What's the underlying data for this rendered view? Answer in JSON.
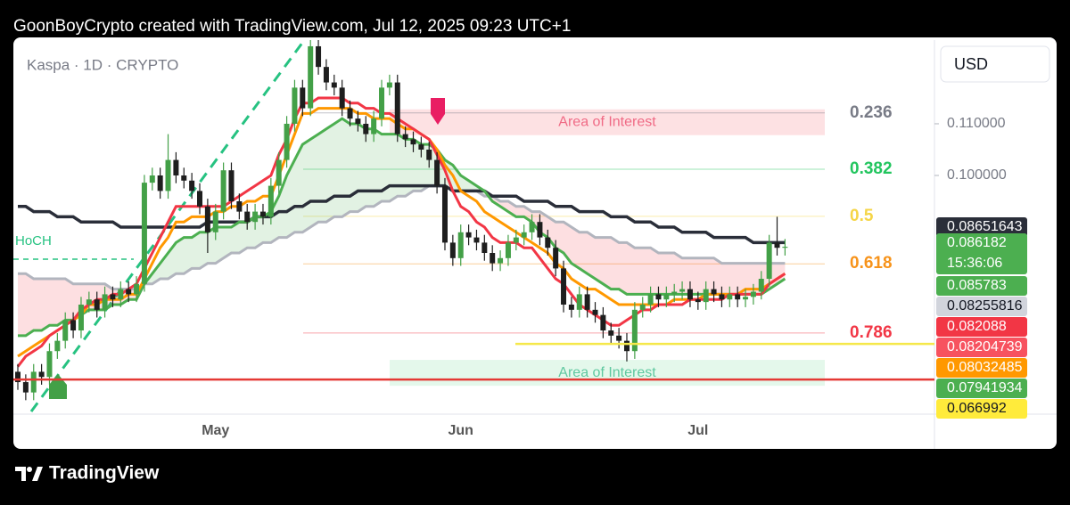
{
  "header": {
    "text": "GoonBoyCrypto created with TradingView.com, Jul 12, 2025 09:23 UTC+1"
  },
  "footer": {
    "brand": "TradingView"
  },
  "chart_data": {
    "type": "candlestick",
    "title": "Kaspa · 1D · CRYPTO",
    "currency": "USD",
    "categories": [
      null,
      null,
      null,
      null,
      null,
      null,
      null,
      null,
      null,
      null,
      null,
      null,
      null,
      null,
      null,
      null,
      null,
      null,
      null,
      null,
      null,
      null,
      null,
      null,
      null,
      "May",
      null,
      null,
      null,
      null,
      null,
      null,
      null,
      null,
      null,
      null,
      null,
      null,
      null,
      null,
      null,
      null,
      null,
      null,
      null,
      null,
      null,
      null,
      null,
      null,
      null,
      null,
      null,
      null,
      null,
      null,
      "Jun",
      null,
      null,
      null,
      null,
      null,
      null,
      null,
      null,
      null,
      null,
      null,
      null,
      null,
      null,
      null,
      null,
      null,
      null,
      null,
      null,
      null,
      null,
      null,
      null,
      null,
      null,
      null,
      null,
      null,
      "Jul",
      null,
      null,
      null,
      null,
      null,
      null,
      null,
      null,
      null,
      null,
      null
    ],
    "open": [
      0.062,
      0.06,
      0.058,
      0.062,
      0.061,
      0.066,
      0.068,
      0.072,
      0.07,
      0.075,
      0.076,
      0.074,
      0.077,
      0.076,
      0.078,
      0.077,
      0.079,
      0.0986,
      0.1,
      0.097,
      0.103,
      0.1,
      0.099,
      0.097,
      0.094,
      0.089,
      0.093,
      0.101,
      0.095,
      0.093,
      0.091,
      0.093,
      0.092,
      0.098,
      0.103,
      0.11,
      0.117,
      0.113,
      0.125,
      0.121,
      0.118,
      0.117,
      0.113,
      0.111,
      0.11,
      0.108,
      0.111,
      0.117,
      0.118,
      0.108,
      0.107,
      0.106,
      0.105,
      0.103,
      0.098,
      0.087,
      0.084,
      0.089,
      0.088,
      0.087,
      0.085,
      0.083,
      0.084,
      0.087,
      0.088,
      0.089,
      0.091,
      0.088,
      0.086,
      0.082,
      0.075,
      0.074,
      0.077,
      0.074,
      0.073,
      0.07,
      0.069,
      0.068,
      0.066,
      0.074,
      0.075,
      0.077,
      0.076,
      0.077,
      0.0775,
      0.078,
      0.076,
      0.0755,
      0.078,
      0.077,
      0.076,
      0.077,
      0.076,
      0.0765,
      0.0775,
      0.08,
      0.087,
      0.086
    ],
    "high": [
      0.0635,
      0.0615,
      0.0635,
      0.0635,
      0.0675,
      0.0695,
      0.0735,
      0.0735,
      0.0765,
      0.0775,
      0.0775,
      0.0785,
      0.0785,
      0.0795,
      0.0795,
      0.0805,
      0.1001,
      0.1015,
      0.1015,
      0.108,
      0.1045,
      0.1015,
      0.1005,
      0.0985,
      0.0955,
      0.0945,
      0.1025,
      0.1025,
      0.0965,
      0.0945,
      0.0945,
      0.0945,
      0.0995,
      0.1045,
      0.1115,
      0.1185,
      0.1185,
      0.1275,
      0.1265,
      0.1225,
      0.1195,
      0.1185,
      0.1145,
      0.1125,
      0.1115,
      0.1125,
      0.1185,
      0.1195,
      0.1195,
      0.1095,
      0.1085,
      0.1075,
      0.1065,
      0.1045,
      0.0995,
      0.0885,
      0.0905,
      0.0905,
      0.0895,
      0.0885,
      0.0865,
      0.0855,
      0.0885,
      0.0895,
      0.0905,
      0.0925,
      0.0925,
      0.0895,
      0.0875,
      0.0835,
      0.0765,
      0.0785,
      0.0785,
      0.0755,
      0.0745,
      0.0715,
      0.0705,
      0.0695,
      0.0755,
      0.0765,
      0.0785,
      0.0785,
      0.0785,
      0.079,
      0.0795,
      0.0795,
      0.0775,
      0.0795,
      0.0795,
      0.0785,
      0.0785,
      0.0785,
      0.078,
      0.079,
      0.0815,
      0.0885,
      0.092,
      0.0877
    ],
    "low": [
      0.0585,
      0.0565,
      0.0565,
      0.0595,
      0.0595,
      0.0645,
      0.0665,
      0.0685,
      0.0685,
      0.0735,
      0.0725,
      0.0725,
      0.0745,
      0.0745,
      0.0755,
      0.0755,
      0.0775,
      0.0971,
      0.0955,
      0.0955,
      0.0985,
      0.0975,
      0.0955,
      0.0925,
      0.085,
      0.0875,
      0.0915,
      0.0935,
      0.0915,
      0.0895,
      0.0895,
      0.0905,
      0.0905,
      0.0965,
      0.1015,
      0.1085,
      0.1115,
      0.1115,
      0.1195,
      0.1165,
      0.1155,
      0.1115,
      0.1095,
      0.1085,
      0.1065,
      0.1065,
      0.1095,
      0.1155,
      0.1065,
      0.1055,
      0.1045,
      0.1035,
      0.1015,
      0.0965,
      0.0855,
      0.0825,
      0.0825,
      0.0865,
      0.0855,
      0.0835,
      0.0815,
      0.0815,
      0.0825,
      0.0855,
      0.0865,
      0.0875,
      0.0865,
      0.0845,
      0.0805,
      0.0735,
      0.0725,
      0.0725,
      0.0725,
      0.0715,
      0.0685,
      0.0675,
      0.0665,
      0.064,
      0.0645,
      0.0725,
      0.0735,
      0.0745,
      0.0745,
      0.0755,
      0.076,
      0.0745,
      0.074,
      0.074,
      0.0755,
      0.0745,
      0.0745,
      0.0745,
      0.0745,
      0.075,
      0.076,
      0.0785,
      0.0845,
      0.0845
    ],
    "close": [
      0.06,
      0.058,
      0.062,
      0.061,
      0.066,
      0.068,
      0.072,
      0.07,
      0.075,
      0.076,
      0.074,
      0.077,
      0.076,
      0.078,
      0.077,
      0.079,
      0.0986,
      0.1,
      0.097,
      0.103,
      0.1,
      0.099,
      0.097,
      0.094,
      0.089,
      0.093,
      0.101,
      0.095,
      0.093,
      0.091,
      0.093,
      0.092,
      0.098,
      0.103,
      0.11,
      0.117,
      0.113,
      0.125,
      0.121,
      0.118,
      0.117,
      0.113,
      0.111,
      0.11,
      0.108,
      0.111,
      0.117,
      0.118,
      0.108,
      0.107,
      0.106,
      0.105,
      0.103,
      0.098,
      0.087,
      0.084,
      0.089,
      0.088,
      0.087,
      0.085,
      0.083,
      0.084,
      0.087,
      0.088,
      0.089,
      0.091,
      0.088,
      0.086,
      0.082,
      0.075,
      0.074,
      0.077,
      0.074,
      0.073,
      0.07,
      0.069,
      0.068,
      0.066,
      0.074,
      0.075,
      0.077,
      0.076,
      0.077,
      0.0775,
      0.078,
      0.076,
      0.0755,
      0.078,
      0.077,
      0.076,
      0.077,
      0.076,
      0.0765,
      0.0775,
      0.08,
      0.087,
      0.086,
      0.0862
    ],
    "up_color": "#43a047",
    "down_color": "#1e1e1e",
    "lines": [
      {
        "color": "#2a2e39",
        "values": [
          0.094,
          0.094,
          0.093,
          0.093,
          0.093,
          0.092,
          0.092,
          0.092,
          0.091,
          0.091,
          0.091,
          0.091,
          0.091,
          0.09,
          0.09,
          0.09,
          0.09,
          0.09,
          0.09,
          0.09,
          0.09,
          0.09,
          0.09,
          0.09,
          0.091,
          0.091,
          0.091,
          0.091,
          0.091,
          0.091,
          0.092,
          0.092,
          0.092,
          0.093,
          0.093,
          0.094,
          0.094,
          0.095,
          0.095,
          0.095,
          0.096,
          0.096,
          0.096,
          0.097,
          0.097,
          0.097,
          0.097,
          0.098,
          0.098,
          0.098,
          0.098,
          0.098,
          0.098,
          0.098,
          0.098,
          0.097,
          0.097,
          0.097,
          0.097,
          0.097,
          0.096,
          0.096,
          0.096,
          0.096,
          0.095,
          0.095,
          0.095,
          0.095,
          0.094,
          0.094,
          0.094,
          0.093,
          0.093,
          0.093,
          0.093,
          0.092,
          0.092,
          0.092,
          0.091,
          0.091,
          0.091,
          0.09,
          0.09,
          0.09,
          0.089,
          0.089,
          0.089,
          0.089,
          0.088,
          0.088,
          0.088,
          0.088,
          0.088,
          0.087,
          0.087,
          0.087,
          0.087,
          0.087
        ]
      },
      {
        "color": "#b2b5be",
        "values": [
          0.081,
          0.081,
          0.08,
          0.08,
          0.08,
          0.08,
          0.08,
          0.079,
          0.079,
          0.079,
          0.079,
          0.079,
          0.078,
          0.078,
          0.078,
          0.078,
          0.079,
          0.079,
          0.08,
          0.08,
          0.081,
          0.081,
          0.082,
          0.082,
          0.083,
          0.083,
          0.084,
          0.085,
          0.085,
          0.086,
          0.086,
          0.087,
          0.087,
          0.088,
          0.088,
          0.089,
          0.089,
          0.09,
          0.091,
          0.091,
          0.092,
          0.092,
          0.093,
          0.093,
          0.094,
          0.094,
          0.095,
          0.095,
          0.096,
          0.096,
          0.097,
          0.097,
          0.098,
          0.098,
          0.098,
          0.097,
          0.097,
          0.097,
          0.097,
          0.096,
          0.096,
          0.095,
          0.095,
          0.094,
          0.094,
          0.093,
          0.093,
          0.092,
          0.091,
          0.091,
          0.09,
          0.089,
          0.089,
          0.088,
          0.088,
          0.088,
          0.087,
          0.087,
          0.086,
          0.086,
          0.086,
          0.085,
          0.085,
          0.085,
          0.084,
          0.084,
          0.084,
          0.084,
          0.084,
          0.083,
          0.083,
          0.083,
          0.083,
          0.083,
          0.083,
          0.083,
          0.083,
          0.083
        ]
      },
      {
        "color": "#4caf50",
        "values": [
          0.069,
          0.069,
          0.07,
          0.07,
          0.071,
          0.071,
          0.072,
          0.072,
          0.073,
          0.074,
          0.074,
          0.074,
          0.075,
          0.075,
          0.076,
          0.076,
          0.079,
          0.081,
          0.083,
          0.085,
          0.087,
          0.088,
          0.088,
          0.089,
          0.089,
          0.09,
          0.09,
          0.09,
          0.091,
          0.091,
          0.092,
          0.092,
          0.093,
          0.096,
          0.1,
          0.103,
          0.106,
          0.107,
          0.108,
          0.109,
          0.11,
          0.111,
          0.11,
          0.11,
          0.109,
          0.109,
          0.108,
          0.108,
          0.108,
          0.107,
          0.107,
          0.106,
          0.106,
          0.105,
          0.103,
          0.102,
          0.1,
          0.099,
          0.098,
          0.097,
          0.095,
          0.094,
          0.093,
          0.092,
          0.092,
          0.091,
          0.089,
          0.088,
          0.086,
          0.085,
          0.083,
          0.082,
          0.081,
          0.08,
          0.079,
          0.078,
          0.078,
          0.077,
          0.077,
          0.077,
          0.077,
          0.077,
          0.077,
          0.077,
          0.077,
          0.077,
          0.077,
          0.077,
          0.077,
          0.077,
          0.077,
          0.077,
          0.077,
          0.077,
          0.077,
          0.078,
          0.079,
          0.08
        ]
      },
      {
        "color": "#ff9800",
        "values": [
          0.065,
          0.066,
          0.067,
          0.068,
          0.069,
          0.07,
          0.071,
          0.072,
          0.073,
          0.075,
          0.075,
          0.076,
          0.076,
          0.076,
          0.077,
          0.077,
          0.08,
          0.083,
          0.086,
          0.088,
          0.091,
          0.091,
          0.092,
          0.092,
          0.092,
          0.093,
          0.093,
          0.094,
          0.094,
          0.095,
          0.095,
          0.096,
          0.096,
          0.1,
          0.104,
          0.108,
          0.112,
          0.112,
          0.113,
          0.113,
          0.113,
          0.113,
          0.113,
          0.112,
          0.112,
          0.111,
          0.111,
          0.111,
          0.11,
          0.109,
          0.109,
          0.108,
          0.107,
          0.105,
          0.102,
          0.1,
          0.097,
          0.096,
          0.095,
          0.093,
          0.092,
          0.091,
          0.09,
          0.089,
          0.088,
          0.087,
          0.086,
          0.085,
          0.083,
          0.082,
          0.08,
          0.079,
          0.078,
          0.078,
          0.077,
          0.076,
          0.075,
          0.075,
          0.075,
          0.075,
          0.075,
          0.075,
          0.075,
          0.076,
          0.076,
          0.076,
          0.076,
          0.077,
          0.077,
          0.077,
          0.077,
          0.077,
          0.078,
          0.078,
          0.078,
          0.079,
          0.08,
          0.081
        ]
      },
      {
        "color": "#f23645",
        "values": [
          0.063,
          0.065,
          0.066,
          0.067,
          0.069,
          0.07,
          0.071,
          0.072,
          0.074,
          0.075,
          0.076,
          0.076,
          0.077,
          0.077,
          0.078,
          0.079,
          0.082,
          0.085,
          0.088,
          0.091,
          0.094,
          0.094,
          0.094,
          0.094,
          0.094,
          0.094,
          0.094,
          0.095,
          0.096,
          0.097,
          0.098,
          0.099,
          0.1,
          0.104,
          0.107,
          0.111,
          0.114,
          0.114,
          0.115,
          0.115,
          0.115,
          0.115,
          0.114,
          0.114,
          0.113,
          0.113,
          0.112,
          0.112,
          0.111,
          0.11,
          0.109,
          0.108,
          0.107,
          0.104,
          0.101,
          0.097,
          0.094,
          0.093,
          0.091,
          0.09,
          0.088,
          0.087,
          0.087,
          0.087,
          0.086,
          0.086,
          0.084,
          0.082,
          0.08,
          0.079,
          0.077,
          0.075,
          0.074,
          0.073,
          0.072,
          0.071,
          0.071,
          0.072,
          0.073,
          0.074,
          0.074,
          0.075,
          0.075,
          0.075,
          0.075,
          0.076,
          0.076,
          0.076,
          0.076,
          0.076,
          0.077,
          0.077,
          0.077,
          0.077,
          0.077,
          0.079,
          0.08,
          0.081
        ]
      }
    ],
    "cloud": {
      "upper_line": 2,
      "lower_line": 1,
      "up_color": "rgba(76,175,80,0.16)",
      "down_color": "rgba(242,54,69,0.16)"
    },
    "ylim": [
      0.0538,
      0.1262
    ],
    "yticks": [
      {
        "value": 0.11,
        "label": "0.110000"
      },
      {
        "value": 0.1,
        "label": "0.100000"
      }
    ],
    "fib_levels": [
      {
        "ratio": 0.236,
        "price": 0.1121,
        "color": "#787b86"
      },
      {
        "ratio": 0.382,
        "price": 0.1012,
        "color": "#22c55e"
      },
      {
        "ratio": 0.5,
        "price": 0.0921,
        "color": "#f5d547"
      },
      {
        "ratio": 0.618,
        "price": 0.0829,
        "color": "#f7931a"
      },
      {
        "ratio": 0.786,
        "price": 0.0695,
        "color": "#f23645"
      }
    ],
    "zones": [
      {
        "label": "Area of Interest",
        "top": 0.1128,
        "bottom": 0.1078,
        "color": "rgba(242,54,69,0.15)",
        "text_color": "#f06a85"
      },
      {
        "label": "Area of Interest",
        "top": 0.0643,
        "bottom": 0.0593,
        "color": "rgba(34,197,94,0.12)",
        "text_color": "#5fc8a0"
      }
    ],
    "support_lines": [
      {
        "price": 0.0605,
        "color": "#e53935"
      },
      {
        "price": 0.0674,
        "color": "#f5e84a"
      }
    ],
    "hoch": {
      "label": "HoCH",
      "price": 0.0838,
      "color": "#26c281"
    },
    "price_tags": [
      {
        "value": 0.08651643,
        "color": "#2a2e39",
        "text_color": "#ffffff"
      },
      {
        "value": 0.086182,
        "countdown": "15:36:06",
        "color": "#4caf50",
        "text_color": "#ffffff"
      },
      {
        "value": 0.085783,
        "color": "#4caf50",
        "text_color": "#ffffff"
      },
      {
        "value": 0.08255816,
        "color": "#d1d4dc",
        "text_color": "#131722"
      },
      {
        "value": 0.082088,
        "color": "#f23645",
        "text_color": "#ffffff"
      },
      {
        "value": 0.08204739,
        "color": "#f7525f",
        "text_color": "#ffffff"
      },
      {
        "value": 0.08032485,
        "color": "#ff9800",
        "text_color": "#ffffff"
      },
      {
        "value": 0.07941934,
        "color": "#4caf50",
        "text_color": "#ffffff"
      },
      {
        "value": 0.066992,
        "color": "#ffeb3b",
        "text_color": "#131722"
      }
    ]
  }
}
